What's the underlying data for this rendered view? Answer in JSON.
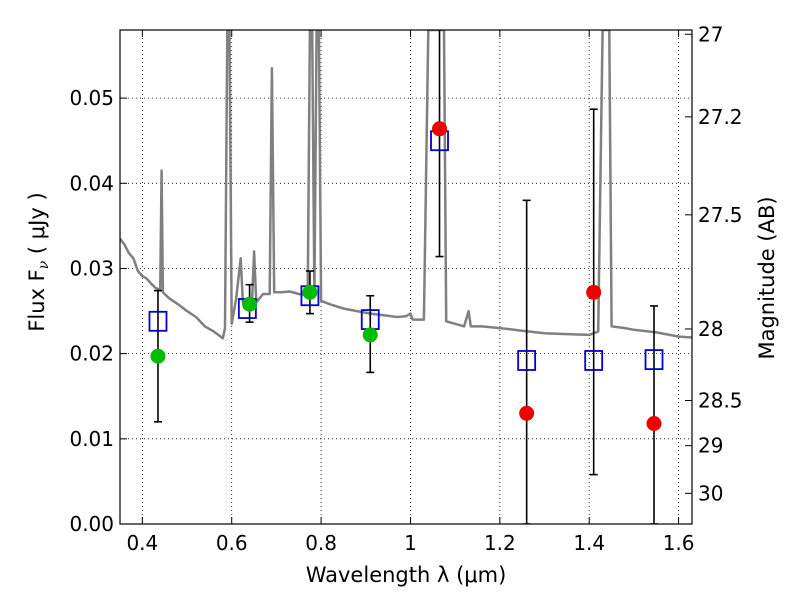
{
  "chart_data": {
    "type": "scatter",
    "xlabel": "Wavelength  λ (μm)",
    "ylabel_left": "Flux  F",
    "ylabel_left_sub": "ν",
    "ylabel_left_unit": " ( μJy )",
    "ylabel_right": "Magnitude (AB)",
    "xlim": [
      0.35,
      1.63
    ],
    "ylim": [
      0.0,
      0.058
    ],
    "grid": true,
    "x_ticks": [
      0.4,
      0.6,
      0.8,
      1.0,
      1.2,
      1.4,
      1.6
    ],
    "x_tick_labels": [
      "0.4",
      "0.6",
      "0.8",
      "1",
      "1.2",
      "1.4",
      "1.6"
    ],
    "y_ticks": [
      0.0,
      0.01,
      0.02,
      0.03,
      0.04,
      0.05
    ],
    "y_tick_labels": [
      "0.00",
      "0.01",
      "0.02",
      "0.03",
      "0.04",
      "0.05"
    ],
    "right_ticks": [
      {
        "flux": 0.0575,
        "label": "27"
      },
      {
        "flux": 0.0478,
        "label": "27.2"
      },
      {
        "flux": 0.0363,
        "label": "27.5"
      },
      {
        "flux": 0.0229,
        "label": "28"
      },
      {
        "flux": 0.0145,
        "label": "28.5"
      },
      {
        "flux": 0.0092,
        "label": "29"
      },
      {
        "flux": 0.0036,
        "label": "30"
      }
    ],
    "colors": {
      "spectrum": "#808080",
      "model_marker": "#0000cc",
      "green_marker": "#00bb00",
      "red_marker": "#ee0000",
      "errorbar": "#000000"
    },
    "spectrum": [
      [
        0.35,
        0.0335
      ],
      [
        0.36,
        0.0328
      ],
      [
        0.37,
        0.0318
      ],
      [
        0.38,
        0.0312
      ],
      [
        0.39,
        0.0297
      ],
      [
        0.4,
        0.0291
      ],
      [
        0.41,
        0.0288
      ],
      [
        0.42,
        0.0282
      ],
      [
        0.43,
        0.0277
      ],
      [
        0.44,
        0.0275
      ],
      [
        0.443,
        0.0415
      ],
      [
        0.446,
        0.0272
      ],
      [
        0.46,
        0.0265
      ],
      [
        0.48,
        0.0258
      ],
      [
        0.5,
        0.025
      ],
      [
        0.52,
        0.0243
      ],
      [
        0.54,
        0.0232
      ],
      [
        0.56,
        0.0226
      ],
      [
        0.58,
        0.0218
      ],
      [
        0.585,
        0.023
      ],
      [
        0.59,
        0.058
      ],
      [
        0.595,
        0.058
      ],
      [
        0.6,
        0.0235
      ],
      [
        0.61,
        0.0265
      ],
      [
        0.62,
        0.0312
      ],
      [
        0.625,
        0.026
      ],
      [
        0.635,
        0.0262
      ],
      [
        0.645,
        0.0255
      ],
      [
        0.65,
        0.032
      ],
      [
        0.655,
        0.026
      ],
      [
        0.67,
        0.027
      ],
      [
        0.685,
        0.027
      ],
      [
        0.69,
        0.0535
      ],
      [
        0.695,
        0.0272
      ],
      [
        0.71,
        0.0272
      ],
      [
        0.73,
        0.0273
      ],
      [
        0.75,
        0.027
      ],
      [
        0.77,
        0.0269
      ],
      [
        0.775,
        0.058
      ],
      [
        0.78,
        0.058
      ],
      [
        0.785,
        0.027
      ],
      [
        0.79,
        0.058
      ],
      [
        0.795,
        0.058
      ],
      [
        0.8,
        0.0262
      ],
      [
        0.82,
        0.0258
      ],
      [
        0.85,
        0.0253
      ],
      [
        0.88,
        0.025
      ],
      [
        0.91,
        0.0247
      ],
      [
        0.94,
        0.0245
      ],
      [
        0.97,
        0.0243
      ],
      [
        0.99,
        0.0244
      ],
      [
        1.0,
        0.0247
      ],
      [
        1.005,
        0.024
      ],
      [
        1.03,
        0.024
      ],
      [
        1.04,
        0.058
      ],
      [
        1.06,
        0.058
      ],
      [
        1.075,
        0.058
      ],
      [
        1.08,
        0.0238
      ],
      [
        1.1,
        0.0235
      ],
      [
        1.12,
        0.0232
      ],
      [
        1.13,
        0.025
      ],
      [
        1.135,
        0.0232
      ],
      [
        1.16,
        0.0232
      ],
      [
        1.2,
        0.023
      ],
      [
        1.25,
        0.0227
      ],
      [
        1.3,
        0.0224
      ],
      [
        1.35,
        0.0223
      ],
      [
        1.4,
        0.0222
      ],
      [
        1.42,
        0.0226
      ],
      [
        1.43,
        0.058
      ],
      [
        1.445,
        0.058
      ],
      [
        1.45,
        0.0232
      ],
      [
        1.48,
        0.023
      ],
      [
        1.5,
        0.0228
      ],
      [
        1.55,
        0.0225
      ],
      [
        1.58,
        0.0222
      ],
      [
        1.6,
        0.022
      ],
      [
        1.63,
        0.0219
      ]
    ],
    "model_points": [
      {
        "x": 0.435,
        "y": 0.0238
      },
      {
        "x": 0.635,
        "y": 0.0253
      },
      {
        "x": 0.775,
        "y": 0.0268
      },
      {
        "x": 0.91,
        "y": 0.024
      },
      {
        "x": 1.065,
        "y": 0.045
      },
      {
        "x": 1.26,
        "y": 0.0192
      },
      {
        "x": 1.41,
        "y": 0.0192
      },
      {
        "x": 1.545,
        "y": 0.0193
      }
    ],
    "observed_points": [
      {
        "x": 0.435,
        "y": 0.0197,
        "yerr_low": 0.012,
        "yerr_high": 0.0274,
        "color": "green"
      },
      {
        "x": 0.64,
        "y": 0.0258,
        "yerr_low": 0.0237,
        "yerr_high": 0.0281,
        "color": "green"
      },
      {
        "x": 0.775,
        "y": 0.0272,
        "yerr_low": 0.0247,
        "yerr_high": 0.0297,
        "color": "green"
      },
      {
        "x": 0.91,
        "y": 0.0222,
        "yerr_low": 0.0178,
        "yerr_high": 0.0268,
        "color": "green"
      },
      {
        "x": 1.065,
        "y": 0.0464,
        "yerr_low": 0.0314,
        "yerr_high": 0.0614,
        "color": "red"
      },
      {
        "x": 1.26,
        "y": 0.013,
        "yerr_low": 0.0,
        "yerr_high": 0.038,
        "color": "red"
      },
      {
        "x": 1.41,
        "y": 0.0272,
        "yerr_low": 0.0058,
        "yerr_high": 0.0487,
        "color": "red"
      },
      {
        "x": 1.545,
        "y": 0.0118,
        "yerr_low": 0.0,
        "yerr_high": 0.0256,
        "color": "red"
      }
    ]
  }
}
